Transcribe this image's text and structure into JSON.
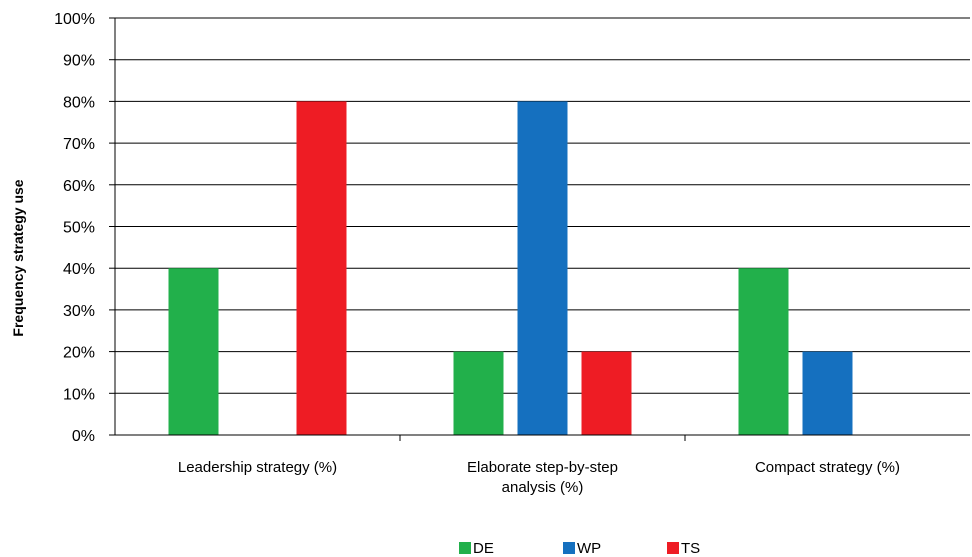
{
  "chart_data": {
    "type": "bar",
    "categories": [
      [
        "Leadership strategy (%)"
      ],
      [
        "Elaborate step-by-step",
        "analysis (%)"
      ],
      [
        "Compact strategy (%)"
      ]
    ],
    "series": [
      {
        "name": "DE",
        "color": "#22b04b",
        "values": [
          40,
          20,
          40
        ]
      },
      {
        "name": "WP",
        "color": "#1570bf",
        "values": [
          0,
          80,
          20
        ]
      },
      {
        "name": "TS",
        "color": "#ee1c24",
        "values": [
          80,
          20,
          0
        ]
      }
    ],
    "title": "",
    "xlabel": "",
    "ylabel": "Frequency strategy use",
    "ylim": [
      0,
      100
    ],
    "yticks": [
      "0%",
      "10%",
      "20%",
      "30%",
      "40%",
      "50%",
      "60%",
      "70%",
      "80%",
      "90%",
      "100%"
    ],
    "grid": true,
    "legend": "bottom-center"
  }
}
